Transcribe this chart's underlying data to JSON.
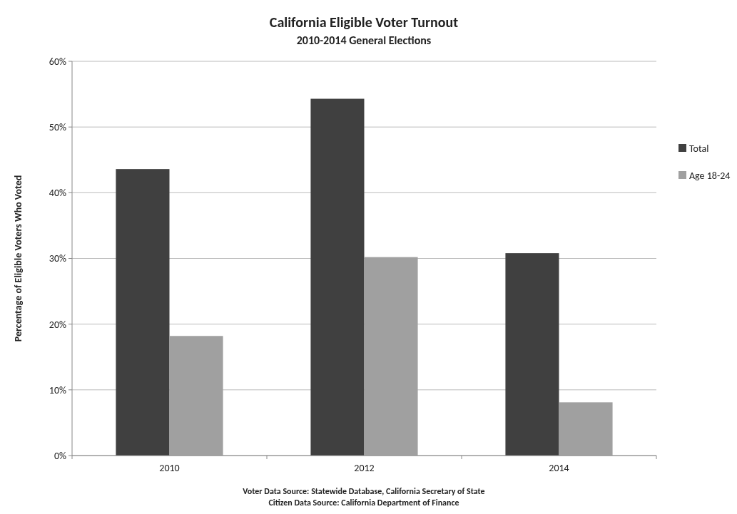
{
  "chart_data": {
    "type": "bar",
    "title": "California Eligible Voter Turnout",
    "subtitle": "2010-2014 General Elections",
    "ylabel": "Percentage of Eligible Voters Who Voted",
    "categories": [
      "2010",
      "2012",
      "2014"
    ],
    "series": [
      {
        "name": "Total",
        "color": "#404040",
        "values": [
          43.6,
          54.3,
          30.8
        ]
      },
      {
        "name": "Age 18-24",
        "color": "#a0a0a0",
        "values": [
          18.2,
          30.2,
          8.1
        ]
      }
    ],
    "ylim": [
      0,
      60
    ],
    "yticks": [
      {
        "value": 0,
        "label": "0%"
      },
      {
        "value": 10,
        "label": "10%"
      },
      {
        "value": 20,
        "label": "20%"
      },
      {
        "value": 30,
        "label": "30%"
      },
      {
        "value": 40,
        "label": "40%"
      },
      {
        "value": 50,
        "label": "50%"
      },
      {
        "value": 60,
        "label": "60%"
      }
    ],
    "grid": "y",
    "legend": "right",
    "annotations": [
      "Voter Data Source: Statewide Database, California Secretary of State",
      "Citizen Data Source: California Department of Finance"
    ]
  }
}
